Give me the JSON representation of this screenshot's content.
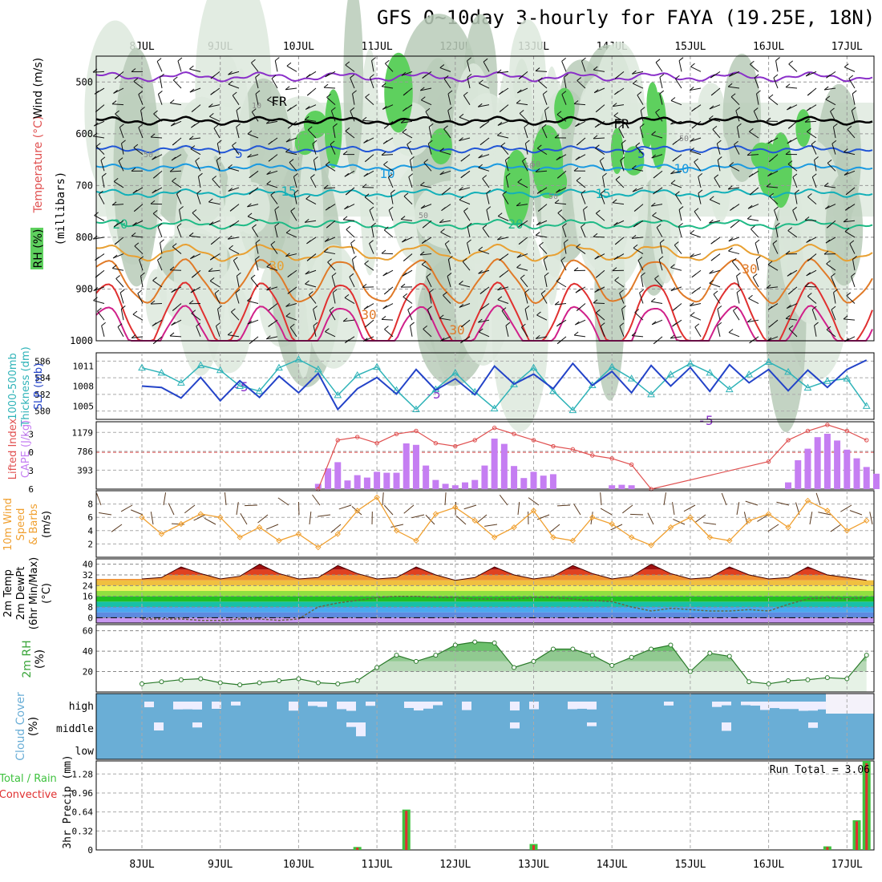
{
  "title": "GFS 0~10day 3-hourly for FAYA (19.25E, 18N)",
  "days": [
    "8JUL",
    "9JUL",
    "10JUL",
    "11JUL",
    "12JUL",
    "13JUL",
    "14JUL",
    "15JUL",
    "16JUL",
    "17JUL"
  ],
  "colors": {
    "rh_dark": "#b9cbb9",
    "rh_mid": "#dde9dd",
    "rh_green": "#5ed05e",
    "cloud_blue": "#6aaed6",
    "cape_purple": "#c57ef2",
    "li_red": "#e05050",
    "thick": "#2fb3b8",
    "slp": "#2343c8",
    "wind": "#f0a030",
    "rh2m": "#3aa53a",
    "precip_green": "#3fc23f",
    "precip_red": "#e03030"
  },
  "panels": {
    "upper": {
      "left_labels": [
        "RH (%)",
        "Temperature (°C)",
        "Wind (m/s)"
      ],
      "ylabel": "(millibars)",
      "y_ticks": [
        "500",
        "600",
        "700",
        "800",
        "900",
        "1000"
      ],
      "contour_labels": [
        "-5",
        "-5",
        "-5",
        "FR",
        "FR",
        "5",
        "5",
        "10",
        "10",
        "15",
        "15",
        "20",
        "20",
        "30",
        "30",
        "30",
        "30",
        "10",
        "50",
        "50",
        "50",
        "50",
        "50",
        "50"
      ]
    },
    "thickness": {
      "left_labels": [
        "1000-500mb",
        "Thickness (dm)",
        "SLP (mb)"
      ],
      "thick_ticks": [
        "586",
        "584",
        "582",
        "580"
      ],
      "slp_ticks": [
        "1011",
        "1008",
        "1005"
      ]
    },
    "cape": {
      "left_labels": [
        "Lifted Index",
        "CAPE (J/kg)"
      ],
      "li_ticks": [
        "-3",
        "0",
        "3",
        "6"
      ],
      "cape_ticks": [
        "1179",
        "786",
        "393"
      ]
    },
    "wind10m": {
      "left_labels": [
        "10m Wind",
        "Speed",
        "& Barbs",
        "(m/s)"
      ],
      "y_ticks": [
        "8",
        "6",
        "4",
        "2"
      ]
    },
    "temp2m": {
      "left_labels": [
        "2m Temp",
        "2m DewPt",
        "(6hr Min/Max)",
        "(°C)"
      ],
      "y_ticks": [
        "40",
        "32",
        "24",
        "16",
        "8",
        "0"
      ]
    },
    "rh2m": {
      "left_labels": [
        "2m RH",
        "(%)"
      ],
      "y_ticks": [
        "60",
        "40",
        "20"
      ]
    },
    "cloud": {
      "left_labels": [
        "Cloud Cover",
        "(%)"
      ],
      "levels": [
        "high",
        "middle",
        "low"
      ]
    },
    "precip": {
      "left_labels": [
        "Total / Rain",
        "Convective",
        "3hr Precip (mm)"
      ],
      "y_ticks": [
        "1.28",
        "0.96",
        "0.64",
        "0.32",
        "0"
      ],
      "run_total": "Run Total = 3.06"
    }
  },
  "chart_data": [
    {
      "type": "line",
      "name": "thickness_slp",
      "x": [
        "8JUL 00",
        "8JUL 06",
        "8JUL 12",
        "8JUL 18",
        "9JUL 00",
        "9JUL 06",
        "9JUL 12",
        "9JUL 18",
        "10JUL 00",
        "10JUL 06",
        "10JUL 12",
        "10JUL 18",
        "11JUL 00",
        "11JUL 06",
        "11JUL 12",
        "11JUL 18",
        "12JUL 00",
        "12JUL 06",
        "12JUL 12",
        "12JUL 18",
        "13JUL 00",
        "13JUL 06",
        "13JUL 12",
        "13JUL 18",
        "14JUL 00",
        "14JUL 06",
        "14JUL 12",
        "14JUL 18",
        "15JUL 00",
        "15JUL 06",
        "15JUL 12",
        "15JUL 18",
        "16JUL 00",
        "16JUL 06",
        "16JUL 12",
        "16JUL 18",
        "17JUL 00",
        "17JUL 06"
      ],
      "series": [
        {
          "name": "1000-500mb Thickness (dm)",
          "values": [
            585.2,
            584.6,
            583.4,
            585.5,
            584.9,
            583.0,
            582.4,
            585.2,
            586.2,
            585.0,
            581.9,
            584.3,
            585.3,
            582.5,
            580.2,
            582.6,
            584.6,
            582.3,
            580.3,
            583.2,
            585.2,
            582.4,
            580.1,
            583.1,
            585.3,
            583.9,
            582.0,
            584.4,
            585.7,
            584.6,
            582.6,
            584.4,
            585.9,
            584.7,
            582.8,
            583.6,
            583.9,
            580.6
          ]
        },
        {
          "name": "SLP (mb)",
          "values": [
            1008.0,
            1007.8,
            1006.2,
            1009.3,
            1005.8,
            1008.8,
            1006.3,
            1009.5,
            1007.0,
            1009.9,
            1004.5,
            1007.6,
            1009.3,
            1006.8,
            1010.5,
            1007.4,
            1009.1,
            1006.7,
            1011.0,
            1008.3,
            1009.8,
            1007.6,
            1011.4,
            1008.1,
            1010.2,
            1007.0,
            1011.1,
            1008.0,
            1010.8,
            1007.2,
            1011.2,
            1008.5,
            1010.5,
            1007.3,
            1010.4,
            1007.8,
            1010.5,
            1011.9
          ]
        }
      ],
      "ylim_thickness": [
        579,
        587
      ],
      "ylim_slp": [
        1003,
        1013
      ]
    },
    {
      "type": "bar",
      "name": "cape",
      "categories": [
        "10JUL 06",
        "10JUL 09",
        "10JUL 12",
        "10JUL 15",
        "10JUL 18",
        "10JUL 21",
        "11JUL 00",
        "11JUL 03",
        "11JUL 06",
        "11JUL 09",
        "11JUL 12",
        "11JUL 15",
        "11JUL 18",
        "11JUL 21",
        "12JUL 00",
        "12JUL 03",
        "12JUL 06",
        "12JUL 09",
        "12JUL 12",
        "12JUL 15",
        "12JUL 18",
        "12JUL 21",
        "13JUL 00",
        "13JUL 03",
        "13JUL 06",
        "14JUL 00",
        "14JUL 03",
        "14JUL 06",
        "16JUL 06",
        "16JUL 09",
        "16JUL 12",
        "16JUL 15",
        "16JUL 18",
        "16JUL 21",
        "17JUL 00",
        "17JUL 03",
        "17JUL 06",
        "17JUL 09"
      ],
      "values": [
        110,
        430,
        560,
        180,
        290,
        240,
        360,
        340,
        340,
        950,
        920,
        490,
        190,
        110,
        80,
        140,
        190,
        490,
        1050,
        940,
        480,
        230,
        360,
        280,
        310,
        80,
        90,
        80,
        140,
        600,
        840,
        1080,
        1150,
        1010,
        820,
        640,
        460,
        320
      ],
      "ylim": [
        0,
        1400
      ]
    },
    {
      "type": "line",
      "name": "lifted_index",
      "x": [
        "10JUL 06",
        "10JUL 12",
        "10JUL 18",
        "11JUL 00",
        "11JUL 06",
        "11JUL 12",
        "11JUL 18",
        "12JUL 00",
        "12JUL 06",
        "12JUL 12",
        "12JUL 18",
        "13JUL 00",
        "13JUL 06",
        "13JUL 12",
        "13JUL 18",
        "14JUL 00",
        "14JUL 06",
        "14JUL 12",
        "16JUL 00",
        "16JUL 06",
        "16JUL 12",
        "16JUL 18",
        "17JUL 00",
        "17JUL 06"
      ],
      "values": [
        6.0,
        -2.0,
        -2.5,
        -1.5,
        -3.0,
        -3.5,
        -1.5,
        -1.0,
        -2.0,
        -4.0,
        -3.0,
        -2.0,
        -1.0,
        -0.5,
        0.5,
        1.0,
        2.0,
        6.0,
        1.5,
        -2.0,
        -3.5,
        -4.5,
        -3.5,
        -2.0
      ],
      "ylim": [
        6,
        -5
      ]
    },
    {
      "type": "line",
      "name": "wind10m_speed",
      "x": [
        "8JUL 00",
        "8JUL 06",
        "8JUL 12",
        "8JUL 18",
        "9JUL 00",
        "9JUL 06",
        "9JUL 12",
        "9JUL 18",
        "10JUL 00",
        "10JUL 06",
        "10JUL 12",
        "10JUL 18",
        "11JUL 00",
        "11JUL 06",
        "11JUL 12",
        "11JUL 18",
        "12JUL 00",
        "12JUL 06",
        "12JUL 12",
        "12JUL 18",
        "13JUL 00",
        "13JUL 06",
        "13JUL 12",
        "13JUL 18",
        "14JUL 00",
        "14JUL 06",
        "14JUL 12",
        "14JUL 18",
        "15JUL 00",
        "15JUL 06",
        "15JUL 12",
        "15JUL 18",
        "16JUL 00",
        "16JUL 06",
        "16JUL 12",
        "16JUL 18",
        "17JUL 00",
        "17JUL 06"
      ],
      "values": [
        6.0,
        3.5,
        5.0,
        6.5,
        6.0,
        3.0,
        4.5,
        2.5,
        3.5,
        1.5,
        3.5,
        7.0,
        9.0,
        4.0,
        2.5,
        6.5,
        7.5,
        5.5,
        3.0,
        4.5,
        7.0,
        3.0,
        2.5,
        6.0,
        5.0,
        3.0,
        1.8,
        4.5,
        6.0,
        3.0,
        2.5,
        5.5,
        6.5,
        4.5,
        8.5,
        7.0,
        4.0,
        5.5
      ],
      "ylim": [
        0,
        10
      ]
    },
    {
      "type": "area",
      "name": "temp2m_dewpt",
      "x": [
        "8JUL 00",
        "8JUL 06",
        "8JUL 12",
        "8JUL 18",
        "9JUL 00",
        "9JUL 06",
        "9JUL 12",
        "9JUL 18",
        "10JUL 00",
        "10JUL 06",
        "10JUL 12",
        "10JUL 18",
        "11JUL 00",
        "11JUL 06",
        "11JUL 12",
        "11JUL 18",
        "12JUL 00",
        "12JUL 06",
        "12JUL 12",
        "12JUL 18",
        "13JUL 00",
        "13JUL 06",
        "13JUL 12",
        "13JUL 18",
        "14JUL 00",
        "14JUL 06",
        "14JUL 12",
        "14JUL 18",
        "15JUL 00",
        "15JUL 06",
        "15JUL 12",
        "15JUL 18",
        "16JUL 00",
        "16JUL 06",
        "16JUL 12",
        "16JUL 18",
        "17JUL 00",
        "17JUL 06"
      ],
      "series": [
        {
          "name": "2m Temp",
          "values": [
            29,
            30,
            38,
            33,
            29,
            31,
            40,
            33,
            29,
            30,
            39,
            33,
            29,
            30,
            38,
            32,
            28,
            30,
            38,
            32,
            29,
            31,
            39,
            33,
            29,
            31,
            40,
            33,
            29,
            30,
            38,
            32,
            29,
            30,
            38,
            32,
            30,
            28
          ]
        },
        {
          "name": "2m DewPt",
          "values": [
            -1,
            -1,
            -1,
            -2,
            -2,
            -1,
            -1,
            -2,
            -1,
            8,
            11,
            13,
            15,
            16,
            16,
            15,
            15,
            14,
            14,
            14,
            15,
            15,
            14,
            13,
            12,
            8,
            5,
            7,
            6,
            5,
            5,
            6,
            5,
            10,
            14,
            15,
            14,
            15
          ]
        }
      ],
      "ylim": [
        -4,
        44
      ]
    },
    {
      "type": "area",
      "name": "rh2m",
      "x": [
        "8JUL 00",
        "8JUL 06",
        "8JUL 12",
        "8JUL 18",
        "9JUL 00",
        "9JUL 06",
        "9JUL 12",
        "9JUL 18",
        "10JUL 00",
        "10JUL 06",
        "10JUL 12",
        "10JUL 18",
        "11JUL 00",
        "11JUL 06",
        "11JUL 12",
        "11JUL 18",
        "12JUL 00",
        "12JUL 06",
        "12JUL 12",
        "12JUL 18",
        "13JUL 00",
        "13JUL 06",
        "13JUL 12",
        "13JUL 18",
        "14JUL 00",
        "14JUL 06",
        "14JUL 12",
        "14JUL 18",
        "15JUL 00",
        "15JUL 06",
        "15JUL 12",
        "15JUL 18",
        "16JUL 00",
        "16JUL 06",
        "16JUL 12",
        "16JUL 18",
        "17JUL 00",
        "17JUL 06"
      ],
      "values": [
        8,
        10,
        12,
        13,
        9,
        7,
        9,
        11,
        13,
        9,
        8,
        11,
        24,
        36,
        30,
        36,
        46,
        49,
        48,
        24,
        30,
        42,
        42,
        36,
        26,
        34,
        42,
        46,
        20,
        38,
        35,
        10,
        8,
        11,
        12,
        14,
        13,
        36
      ],
      "ylim": [
        0,
        66
      ]
    },
    {
      "type": "bar",
      "name": "precip_3hr",
      "categories": [
        "10JUL 18",
        "11JUL 09",
        "13JUL 00",
        "16JUL 18",
        "17JUL 03",
        "17JUL 06"
      ],
      "series": [
        {
          "name": "Total / Rain",
          "values": [
            0.05,
            0.68,
            0.1,
            0.06,
            0.5,
            1.5
          ]
        },
        {
          "name": "Convective",
          "values": [
            0.04,
            0.66,
            0.08,
            0.05,
            0.48,
            1.46
          ]
        }
      ],
      "ylim": [
        0,
        1.5
      ]
    }
  ]
}
